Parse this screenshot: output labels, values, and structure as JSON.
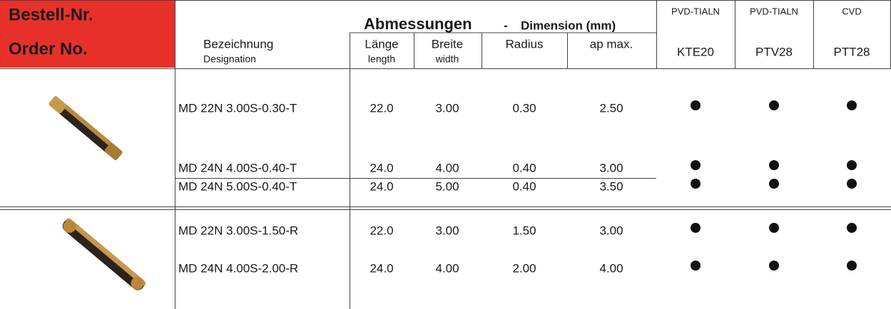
{
  "header": {
    "order_no_de": "Bestell-Nr.",
    "order_no_en": "Order No.",
    "dimensions_de": "Abmessungen",
    "dimensions_sep": "-",
    "dimensions_en": "Dimension (mm)"
  },
  "columns": [
    {
      "de": "Bezeichnung",
      "en": "Designation"
    },
    {
      "de": "Länge",
      "en": "length"
    },
    {
      "de": "Breite",
      "en": "width"
    },
    {
      "de": "Radius"
    },
    {
      "de": "ap max."
    }
  ],
  "grades": [
    {
      "coating": "PVD-TIALN",
      "name": "KTE20"
    },
    {
      "coating": "PVD-TIALN",
      "name": "PTV28"
    },
    {
      "coating": "CVD",
      "name": "PTT28"
    }
  ],
  "groups": [
    {
      "rows": [
        {
          "designation": "MD 22N 3.00S-0.30-T",
          "length": "22.0",
          "width": "3.00",
          "radius": "0.30",
          "ap_max": "2.50",
          "available": [
            true,
            true,
            true
          ]
        },
        {
          "designation": "MD 24N 4.00S-0.40-T",
          "length": "24.0",
          "width": "4.00",
          "radius": "0.40",
          "ap_max": "3.00",
          "available": [
            true,
            true,
            true
          ]
        },
        {
          "designation": "MD 24N 5.00S-0.40-T",
          "length": "24.0",
          "width": "5.00",
          "radius": "0.40",
          "ap_max": "3.50",
          "available": [
            true,
            true,
            true
          ]
        }
      ]
    },
    {
      "rows": [
        {
          "designation": "MD 22N 3.00S-1.50-R",
          "length": "22.0",
          "width": "3.00",
          "radius": "1.50",
          "ap_max": "3.00",
          "available": [
            true,
            true,
            true
          ]
        },
        {
          "designation": "MD 24N 4.00S-2.00-R",
          "length": "24.0",
          "width": "4.00",
          "radius": "2.00",
          "ap_max": "4.00",
          "available": [
            true,
            true,
            true
          ]
        }
      ]
    }
  ]
}
